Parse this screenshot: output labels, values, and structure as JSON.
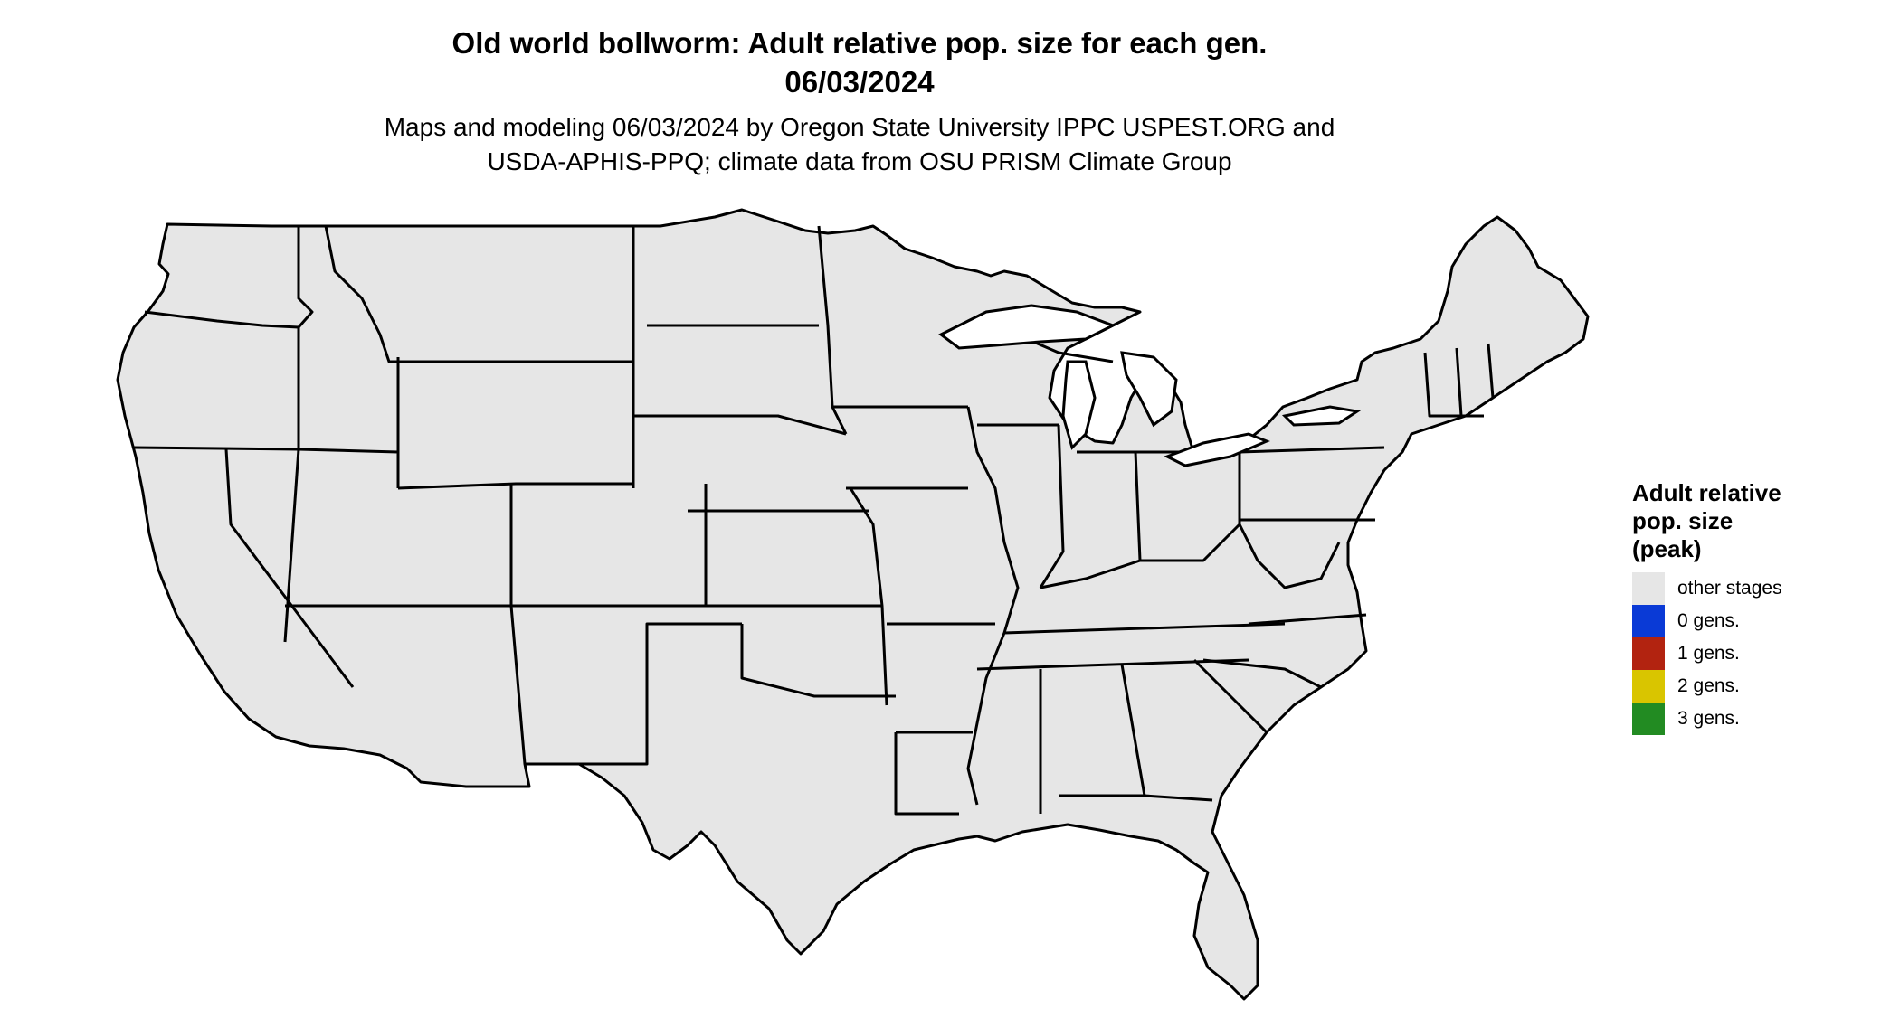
{
  "header": {
    "title_line1": "Old world bollworm: Adult relative pop. size for each gen.",
    "title_line2": "06/03/2024",
    "subtitle_line1": "Maps and modeling 06/03/2024 by Oregon State University IPPC USPEST.ORG and",
    "subtitle_line2": "USDA-APHIS-PPQ; climate data from OSU PRISM Climate Group"
  },
  "legend": {
    "title_line1": "Adult relative",
    "title_line2": "pop. size",
    "title_line3": "(peak)",
    "items": [
      {
        "label": "other stages",
        "color": "#e6e6e6"
      },
      {
        "label": "0 gens.",
        "color": "#0a3ad6"
      },
      {
        "label": "1 gens.",
        "color": "#b22310"
      },
      {
        "label": "2 gens.",
        "color": "#d9c500"
      },
      {
        "label": "3 gens.",
        "color": "#228b22"
      }
    ]
  },
  "map": {
    "land_color": "#e6e6e6",
    "blue_dark": "#0a3ad6",
    "blue_light": "#00aaff",
    "red_dark": "#b22310",
    "red_light": "#ee4411",
    "yellow": "#f2ec00",
    "green": "#228b22"
  }
}
